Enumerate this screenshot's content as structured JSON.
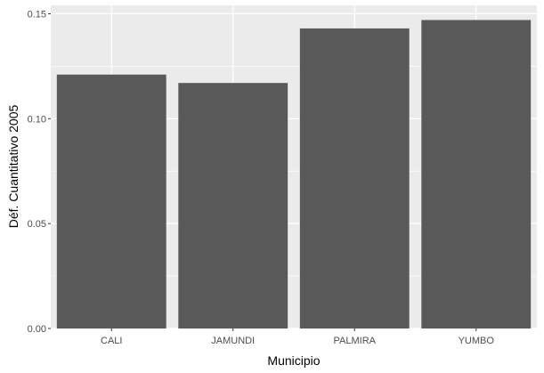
{
  "chart_data": {
    "type": "bar",
    "categories": [
      "CALI",
      "JAMUNDI",
      "PALMIRA",
      "YUMBO"
    ],
    "values": [
      0.121,
      0.117,
      0.143,
      0.147
    ],
    "xlabel": "Municipio",
    "ylabel": "Déf. Cuantitativo 2005",
    "ylim": [
      0,
      0.154
    ],
    "yticks": [
      0.0,
      0.05,
      0.1,
      0.15
    ],
    "ytick_labels": [
      "0.00",
      "0.05",
      "0.10",
      "0.15"
    ],
    "grid": true,
    "legend": "none",
    "colors": {
      "panel_bg": "#ebebeb",
      "grid_major": "#ffffff",
      "bar_fill": "#595959",
      "tick_mark": "#333333"
    }
  }
}
